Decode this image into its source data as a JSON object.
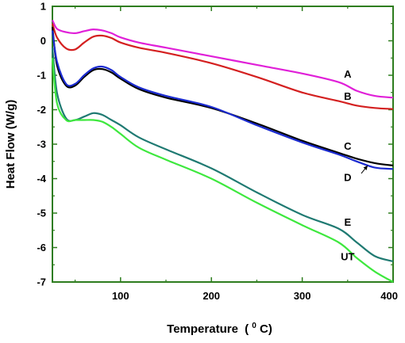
{
  "chart_data": {
    "type": "line",
    "xlabel": "Temperature",
    "xlabel_unit_prefix": "(",
    "xlabel_unit_sup": "0",
    "xlabel_unit_suffix": "C)",
    "ylabel": "Heat Flow (W/g)",
    "xlim": [
      25,
      400
    ],
    "ylim": [
      -7,
      1
    ],
    "x_ticks": [
      100,
      200,
      300,
      400
    ],
    "y_ticks": [
      1,
      0,
      -1,
      -2,
      -3,
      -4,
      -5,
      -6,
      -7
    ],
    "grid": false,
    "frame_color": "#2e7d1e",
    "series": [
      {
        "name": "A",
        "color": "#e020d8",
        "label_at": [
          350,
          -0.95
        ],
        "x": [
          25,
          30,
          40,
          50,
          60,
          70,
          80,
          90,
          100,
          120,
          150,
          200,
          250,
          300,
          340,
          360,
          380,
          400
        ],
        "y": [
          0.6,
          0.35,
          0.25,
          0.22,
          0.28,
          0.33,
          0.3,
          0.22,
          0.1,
          -0.05,
          -0.2,
          -0.45,
          -0.7,
          -0.95,
          -1.2,
          -1.45,
          -1.6,
          -1.65
        ]
      },
      {
        "name": "B",
        "color": "#d42020",
        "label_at": [
          350,
          -1.6
        ],
        "x": [
          25,
          30,
          40,
          50,
          60,
          70,
          80,
          90,
          100,
          120,
          150,
          200,
          250,
          300,
          340,
          360,
          380,
          400
        ],
        "y": [
          0.5,
          0.1,
          -0.22,
          -0.25,
          -0.05,
          0.12,
          0.15,
          0.08,
          -0.05,
          -0.2,
          -0.35,
          -0.65,
          -1.05,
          -1.5,
          -1.75,
          -1.88,
          -1.95,
          -1.98
        ]
      },
      {
        "name": "C",
        "color": "#000000",
        "label_at": [
          350,
          -3.05
        ],
        "x": [
          25,
          30,
          40,
          50,
          60,
          70,
          80,
          90,
          100,
          120,
          150,
          200,
          250,
          300,
          340,
          360,
          380,
          400
        ],
        "y": [
          0.4,
          -0.7,
          -1.3,
          -1.3,
          -1.05,
          -0.85,
          -0.82,
          -0.92,
          -1.1,
          -1.4,
          -1.65,
          -1.95,
          -2.4,
          -2.9,
          -3.25,
          -3.42,
          -3.55,
          -3.62
        ]
      },
      {
        "name": "D",
        "color": "#1a2ad0",
        "label_at": [
          350,
          -3.95
        ],
        "x": [
          25,
          30,
          40,
          50,
          60,
          70,
          80,
          90,
          100,
          120,
          150,
          200,
          250,
          300,
          340,
          360,
          380,
          400
        ],
        "y": [
          0.3,
          -0.6,
          -1.25,
          -1.25,
          -1.0,
          -0.8,
          -0.75,
          -0.85,
          -1.05,
          -1.35,
          -1.6,
          -1.92,
          -2.45,
          -2.95,
          -3.3,
          -3.5,
          -3.68,
          -3.72
        ]
      },
      {
        "name": "E",
        "color": "#1f7a72",
        "label_at": [
          350,
          -5.25
        ],
        "x": [
          25,
          30,
          40,
          50,
          60,
          70,
          80,
          90,
          100,
          120,
          150,
          200,
          250,
          300,
          340,
          360,
          380,
          400
        ],
        "y": [
          -0.2,
          -1.5,
          -2.25,
          -2.3,
          -2.2,
          -2.1,
          -2.15,
          -2.3,
          -2.45,
          -2.8,
          -3.15,
          -3.7,
          -4.4,
          -5.05,
          -5.45,
          -5.85,
          -6.25,
          -6.4
        ]
      },
      {
        "name": "UT",
        "color": "#3ee83e",
        "label_at": [
          350,
          -6.25
        ],
        "x": [
          25,
          30,
          40,
          50,
          60,
          70,
          80,
          90,
          100,
          120,
          150,
          200,
          250,
          300,
          340,
          360,
          380,
          400
        ],
        "y": [
          -0.5,
          -1.8,
          -2.3,
          -2.3,
          -2.3,
          -2.3,
          -2.35,
          -2.5,
          -2.7,
          -3.1,
          -3.45,
          -4.0,
          -4.7,
          -5.35,
          -5.85,
          -6.3,
          -6.7,
          -7.0
        ]
      }
    ],
    "annotation_arrow": {
      "from_series": "D",
      "from": [
        365,
        -3.85
      ],
      "to": [
        372,
        -3.62
      ]
    }
  }
}
